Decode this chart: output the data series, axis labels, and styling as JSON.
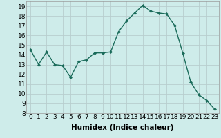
{
  "x": [
    0,
    1,
    2,
    3,
    4,
    5,
    6,
    7,
    8,
    9,
    10,
    11,
    12,
    13,
    14,
    15,
    16,
    17,
    18,
    19,
    20,
    21,
    22,
    23
  ],
  "y": [
    14.5,
    13.0,
    14.3,
    13.0,
    12.9,
    11.7,
    13.3,
    13.5,
    14.2,
    14.2,
    14.3,
    16.4,
    17.5,
    18.3,
    19.1,
    18.5,
    18.3,
    18.2,
    17.0,
    14.2,
    11.2,
    9.9,
    9.3,
    8.4
  ],
  "line_color": "#1a6b5a",
  "marker": "D",
  "marker_size": 2.0,
  "bg_color": "#ceecea",
  "grid_color": "#b8cece",
  "xlabel": "Humidex (Indice chaleur)",
  "xlabel_fontsize": 7.5,
  "ylim": [
    8,
    19.5
  ],
  "xlim": [
    -0.5,
    23.5
  ],
  "yticks": [
    8,
    9,
    10,
    11,
    12,
    13,
    14,
    15,
    16,
    17,
    18,
    19
  ],
  "xticks": [
    0,
    1,
    2,
    3,
    4,
    5,
    6,
    7,
    8,
    9,
    10,
    11,
    12,
    13,
    14,
    15,
    16,
    17,
    18,
    19,
    20,
    21,
    22,
    23
  ],
  "tick_fontsize": 6.5,
  "linewidth": 1.0
}
